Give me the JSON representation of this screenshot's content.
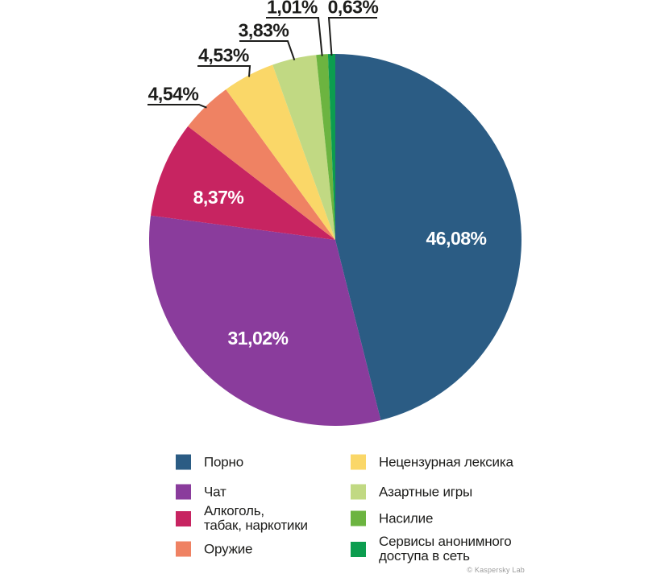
{
  "chart_data": {
    "type": "pie",
    "title": "",
    "unit": "%",
    "direction": "clockwise",
    "start_angle_deg": 0,
    "legend_position": "bottom",
    "slices": [
      {
        "label": "Порно",
        "value": 46.08,
        "display": "46,08%",
        "color": "#2B5C84",
        "label_position": "inside"
      },
      {
        "label": "Чат",
        "value": 31.02,
        "display": "31,02%",
        "color": "#8A3C9C",
        "label_position": "inside"
      },
      {
        "label": "Алкоголь, табак, наркотики",
        "value": 8.37,
        "display": "8,37%",
        "color": "#C72461",
        "label_position": "inside"
      },
      {
        "label": "Оружие",
        "value": 4.54,
        "display": "4,54%",
        "color": "#EF8263",
        "label_position": "callout"
      },
      {
        "label": "Нецензурная лексика",
        "value": 4.53,
        "display": "4,53%",
        "color": "#FAD768",
        "label_position": "callout"
      },
      {
        "label": "Азартные игры",
        "value": 3.83,
        "display": "3,83%",
        "color": "#C1D983",
        "label_position": "callout"
      },
      {
        "label": "Насилие",
        "value": 1.01,
        "display": "1,01%",
        "color": "#6CB440",
        "label_position": "callout"
      },
      {
        "label": "Сервисы анонимного доступа в сеть",
        "value": 0.63,
        "display": "0,63%",
        "color": "#0C9D4F",
        "label_position": "callout"
      }
    ]
  },
  "legend": {
    "columns": [
      {
        "items": [
          {
            "lines": [
              "Порно"
            ],
            "color": "#2B5C84"
          },
          {
            "lines": [
              "Чат"
            ],
            "color": "#8A3C9C"
          },
          {
            "lines": [
              "Алкоголь,",
              "табак, наркотики"
            ],
            "color": "#C72461"
          },
          {
            "lines": [
              "Оружие"
            ],
            "color": "#EF8263"
          }
        ]
      },
      {
        "items": [
          {
            "lines": [
              "Нецензурная лексика"
            ],
            "color": "#FAD768"
          },
          {
            "lines": [
              "Азартные игры"
            ],
            "color": "#C1D983"
          },
          {
            "lines": [
              "Насилие"
            ],
            "color": "#6CB440"
          },
          {
            "lines": [
              "Сервисы анонимного",
              "доступа в сеть"
            ],
            "color": "#0C9D4F"
          }
        ]
      }
    ]
  },
  "footer": {
    "credit": "© Kaspersky Lab"
  }
}
